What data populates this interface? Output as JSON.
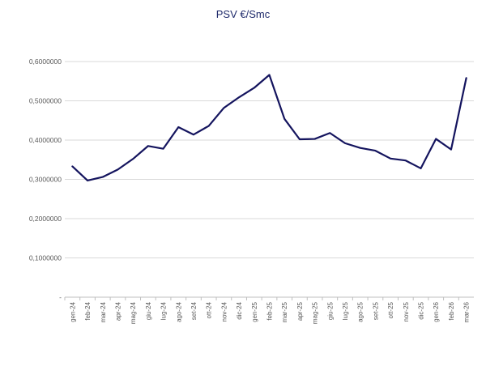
{
  "chart_data": {
    "type": "line",
    "title": "PSV €/Smc",
    "xlabel": "",
    "ylabel": "",
    "ylim": [
      0,
      0.6
    ],
    "ytick_values": [
      0,
      0.1,
      0.2,
      0.3,
      0.4,
      0.5,
      0.6
    ],
    "ytick_labels": [
      "-",
      "0,1000000",
      "0,2000000",
      "0,3000000",
      "0,4000000",
      "0,5000000",
      "0,6000000"
    ],
    "grid": true,
    "legend": "none",
    "categories": [
      "gen-24",
      "feb-24",
      "mar-24",
      "apr-24",
      "mag-24",
      "giu-24",
      "lug-24",
      "ago-24",
      "set-24",
      "ott-24",
      "nov-24",
      "dic-24",
      "gen-25",
      "feb-25",
      "mar-25",
      "apr-25",
      "mag-25",
      "giu-25",
      "lug-25",
      "ago-25",
      "set-25",
      "ott-25",
      "nov-25",
      "dic-25",
      "gen-26",
      "feb-26",
      "mar-26"
    ],
    "series": [
      {
        "color": "#14145e",
        "values": [
          0.333,
          0.297,
          0.306,
          0.325,
          0.352,
          0.385,
          0.378,
          0.433,
          0.414,
          0.436,
          0.482,
          0.509,
          0.533,
          0.566,
          0.454,
          0.402,
          0.403,
          0.418,
          0.392,
          0.38,
          0.373,
          0.353,
          0.348,
          0.328,
          0.403,
          0.376,
          0.558
        ]
      }
    ]
  }
}
